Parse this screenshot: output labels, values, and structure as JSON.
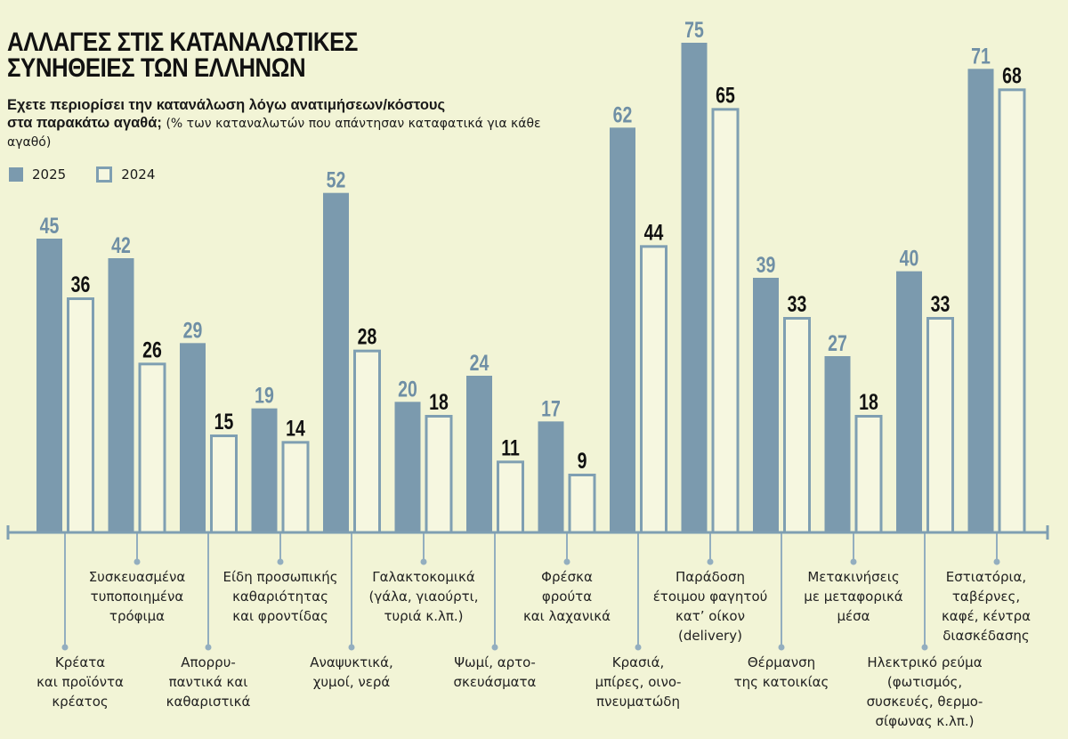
{
  "title_lines": [
    "ΑΛΛΑΓΕΣ ΣΤΙΣ ΚΑΤΑΝΑΛΩΤΙΚΕΣ",
    "ΣΥΝΗΘΕΙΕΣ ΤΩΝ ΕΛΛΗΝΩΝ"
  ],
  "subtitle": {
    "question_line1": "Εχετε περιορίσει την κατανάλωση λόγω ανατιμήσεων/κόστους",
    "question_line2": "στα παρακάτω αγαθά;",
    "note": "(% των καταναλωτών που απάντησαν καταφατικά για κάθε αγαθό)"
  },
  "colors": {
    "fill_2025": "#7b9aae",
    "stroke_2024": "#7f9fb2",
    "label_2025": "#6f8fa5",
    "label_2024": "#111111",
    "background": "#f2f4d6"
  },
  "chart_data": {
    "type": "bar",
    "title": "ΑΛΛΑΓΕΣ ΣΤΙΣ ΚΑΤΑΝΑΛΩΤΙΚΕΣ ΣΥΝΗΘΕΙΕΣ ΤΩΝ ΕΛΛΗΝΩΝ",
    "xlabel": "",
    "ylabel": "%",
    "ylim": [
      0,
      75
    ],
    "grid": false,
    "legend_position": "top-left",
    "categories": [
      "Κρέατα\nκαι προϊόντα\nκρέατος",
      "Συσκευασμένα\nτυποποιημένα\nτρόφιμα",
      "Απορρυ-\nπαντικά και\nκαθαριστικά",
      "Είδη προσωπικής\nκαθαριότητας\nκαι φροντίδας",
      "Αναψυκτικά,\nχυμοί, νερά",
      "Γαλακτοκομικά\n(γάλα, γιαούρτι,\nτυριά κ.λπ.)",
      "Ψωμί, αρτο-\nσκευάσματα",
      "Φρέσκα\nφρούτα\nκαι λαχανικά",
      "Κρασιά,\nμπίρες, οινο-\nπνευματώδη",
      "Παράδοση\nέτοιμου φαγητού\nκατ’ οίκον\n(delivery)",
      "Θέρμανση\nτης κατοικίας",
      "Μετακινήσεις\nμε μεταφορικά\nμέσα",
      "Ηλεκτρικό ρεύμα\n(φωτισμός,\nσυσκευές, θερμο-\nσίφωνας κ.λπ.)",
      "Εστιατόρια,\nταβέρνες,\nκαφέ, κέντρα\nδιασκέδασης"
    ],
    "series": [
      {
        "name": "2025",
        "values": [
          45,
          42,
          29,
          19,
          52,
          20,
          24,
          17,
          62,
          75,
          39,
          27,
          40,
          71
        ]
      },
      {
        "name": "2024",
        "values": [
          36,
          26,
          15,
          14,
          28,
          18,
          11,
          9,
          44,
          65,
          33,
          18,
          33,
          68
        ]
      }
    ]
  }
}
